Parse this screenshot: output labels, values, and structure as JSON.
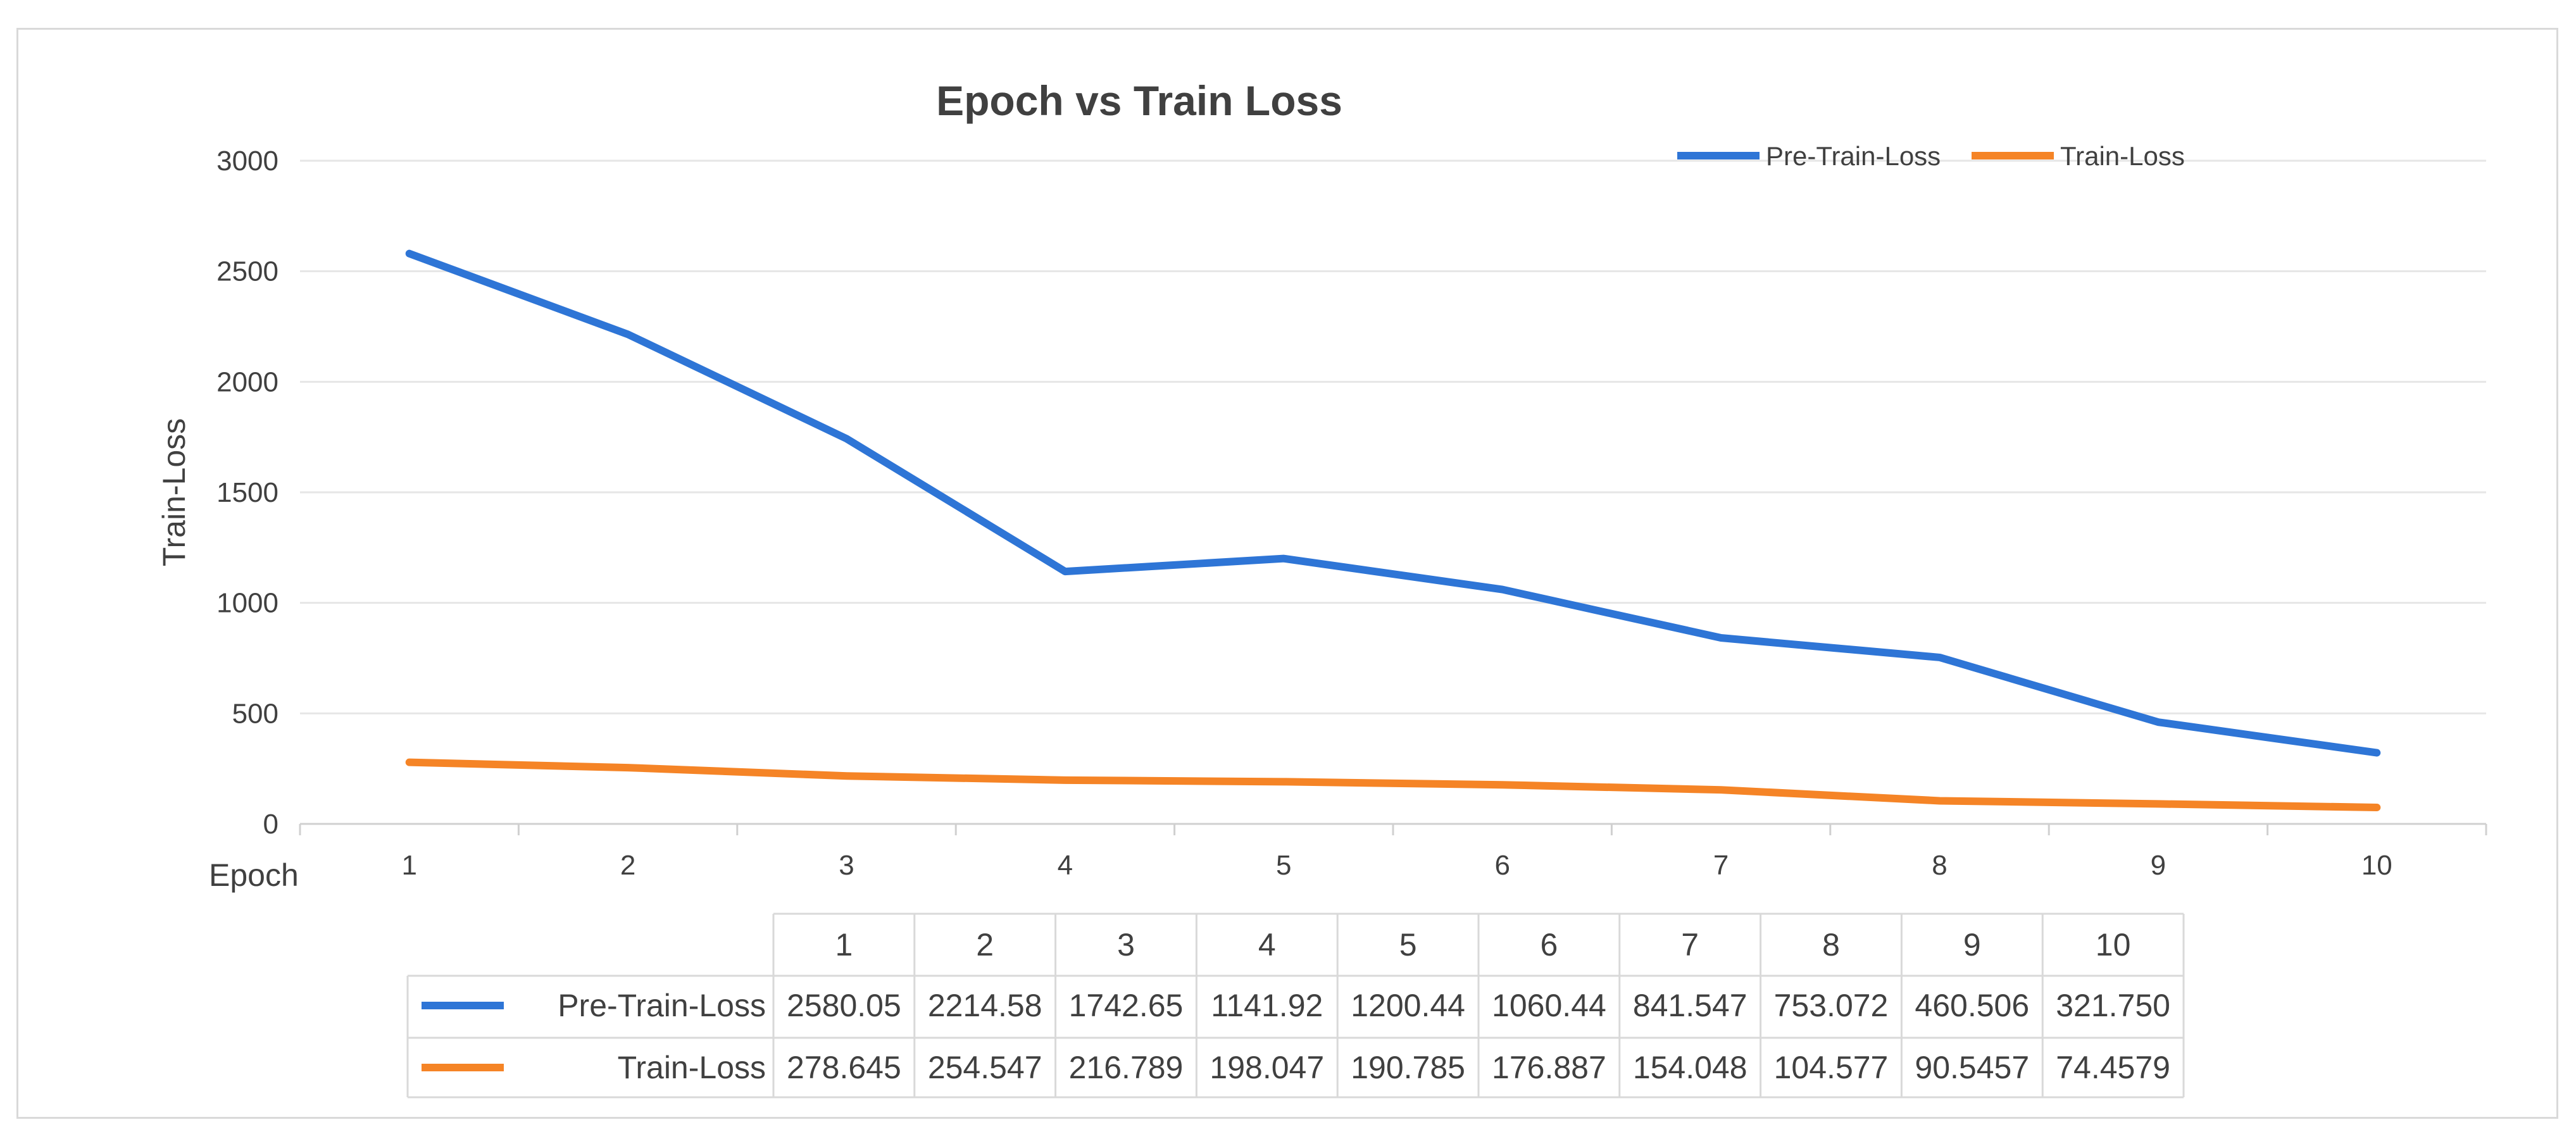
{
  "chart_data": {
    "type": "line",
    "title": "Epoch vs Train Loss",
    "xlabel": "Epoch",
    "ylabel": "Train-Loss",
    "categories": [
      "1",
      "2",
      "3",
      "4",
      "5",
      "6",
      "7",
      "8",
      "9",
      "10"
    ],
    "y_ticks": [
      0,
      500,
      1000,
      1500,
      2000,
      2500,
      3000
    ],
    "ylim": [
      0,
      3000
    ],
    "grid": true,
    "legend_position": "top-right",
    "series": [
      {
        "name": "Pre-Train-Loss",
        "color": "#2e75d6",
        "values": [
          2580.05,
          2214.58,
          1742.65,
          1141.92,
          1200.44,
          1060.44,
          841.547,
          753.072,
          460.506,
          321.75
        ],
        "labels": [
          "2580.05",
          "2214.58",
          "1742.65",
          "1141.92",
          "1200.44",
          "1060.44",
          "841.547",
          "753.072",
          "460.506",
          "321.750"
        ]
      },
      {
        "name": "Train-Loss",
        "color": "#f58426",
        "values": [
          278.645,
          254.547,
          216.789,
          198.047,
          190.785,
          176.887,
          154.048,
          104.577,
          90.5457,
          74.4579
        ],
        "labels": [
          "278.645",
          "254.547",
          "216.789",
          "198.047",
          "190.785",
          "176.887",
          "154.048",
          "104.577",
          "90.5457",
          "74.4579"
        ]
      }
    ],
    "data_table": true
  }
}
